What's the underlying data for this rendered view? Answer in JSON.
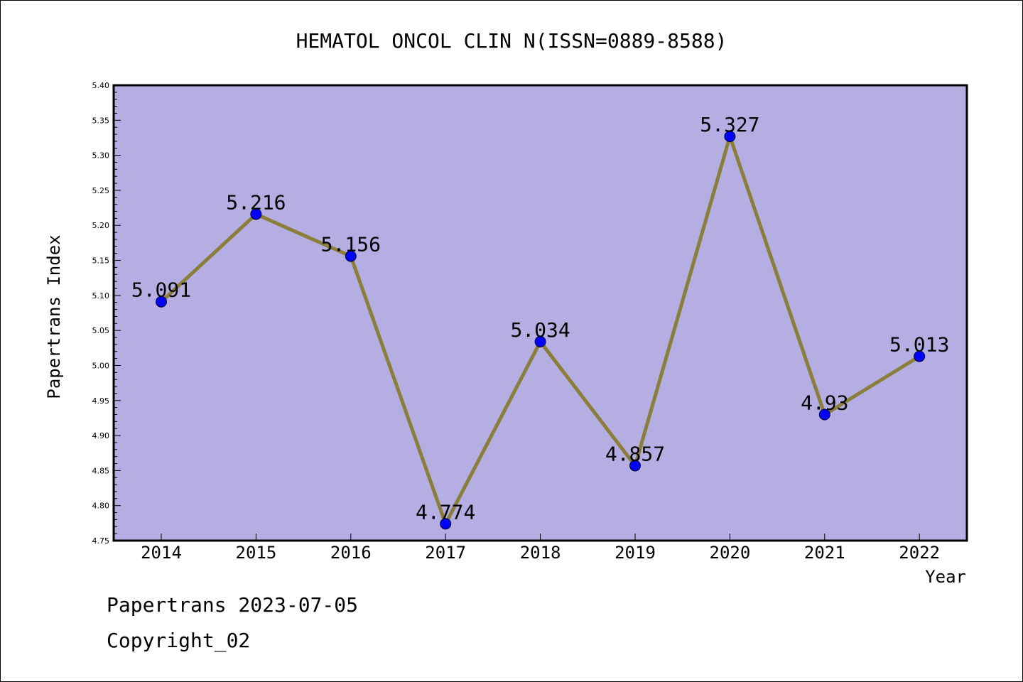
{
  "chart_data": {
    "type": "line",
    "title": "HEMATOL ONCOL CLIN N(ISSN=0889-8588)",
    "xlabel": "Year",
    "ylabel": "Papertrans Index",
    "categories": [
      "2014",
      "2015",
      "2016",
      "2017",
      "2018",
      "2019",
      "2020",
      "2021",
      "2022"
    ],
    "series": [
      {
        "name": "Papertrans Index",
        "values": [
          5.091,
          5.216,
          5.156,
          4.774,
          5.034,
          4.857,
          5.327,
          4.93,
          5.013
        ],
        "labels": [
          "5.091",
          "5.216",
          "5.156",
          "4.774",
          "5.034",
          "4.857",
          "5.327",
          "4.93",
          "5.013"
        ]
      }
    ],
    "ylim": [
      4.75,
      5.4
    ],
    "yticks": [
      "4.75",
      "4.80",
      "4.85",
      "4.90",
      "4.95",
      "5.00",
      "5.05",
      "5.10",
      "5.15",
      "5.20",
      "5.25",
      "5.30",
      "5.35",
      "5.40"
    ],
    "grid": false,
    "colors": {
      "plot_background": "#b4aee2",
      "line": "#8b7d3a",
      "marker": "#0000ff"
    }
  },
  "footer": {
    "date_text": "Papertrans 2023-07-05",
    "copyright_text": "Copyright_02"
  }
}
